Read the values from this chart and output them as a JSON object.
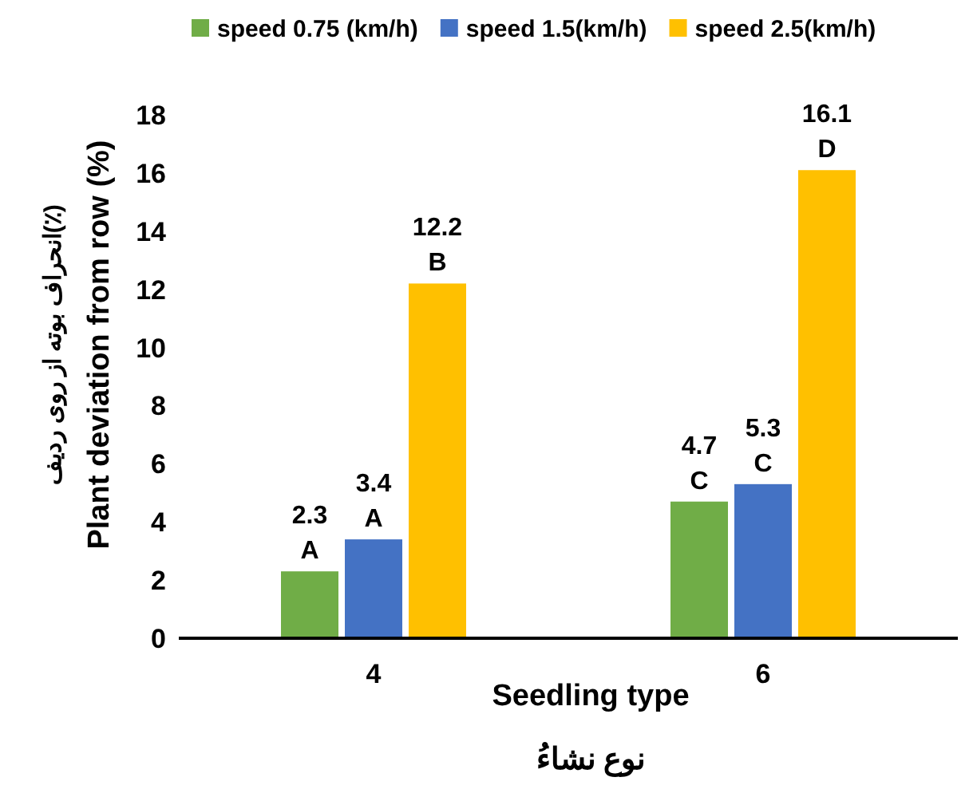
{
  "chart_data": {
    "type": "bar",
    "categories": [
      "4",
      "6"
    ],
    "xlabel": "Seedling type\nنوع نشاءُ",
    "ylabel": "انحراف بوته از روی ردیف(٪)\nPlant deviation from row (%)",
    "series": [
      {
        "name": "speed 0.75 (km/h)",
        "color": "#70ad47",
        "values": [
          2.3,
          4.7
        ],
        "value_labels": [
          "2.3\nA",
          "4.7\nC"
        ]
      },
      {
        "name": "speed 1.5(km/h)",
        "color": "#4472c4",
        "values": [
          3.4,
          5.3
        ],
        "value_labels": [
          "3.4\nA",
          "5.3\nC"
        ]
      },
      {
        "name": "speed 2.5(km/h)",
        "color": "#ffc000",
        "values": [
          12.2,
          16.1
        ],
        "value_labels": [
          "12.2\nB",
          "16.1\nD"
        ]
      }
    ],
    "ylim": [
      0,
      18
    ],
    "yticks": [
      0,
      2,
      4,
      6,
      8,
      10,
      12,
      14,
      16,
      18
    ],
    "grid": false,
    "legend": "top"
  }
}
